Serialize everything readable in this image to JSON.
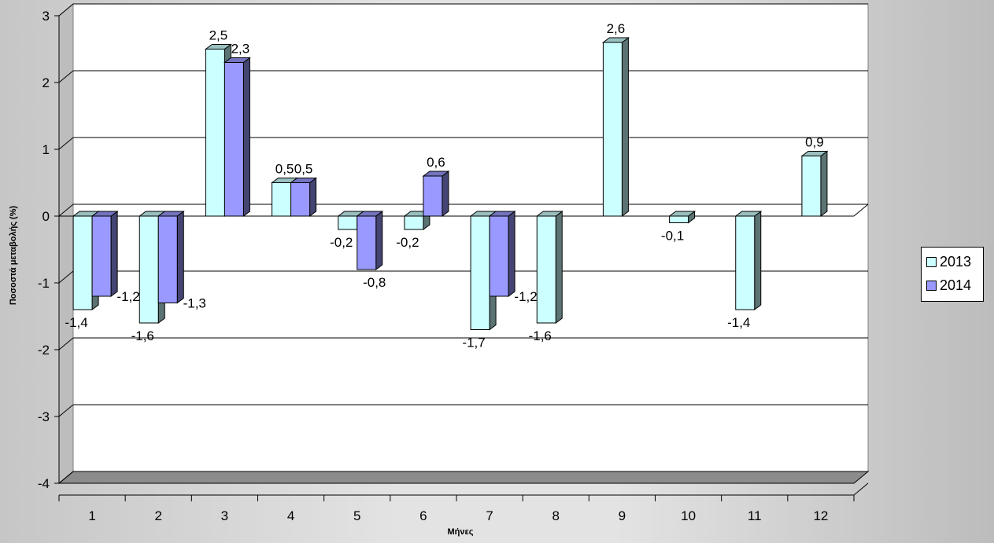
{
  "chart_data": {
    "type": "bar",
    "title": "",
    "xlabel": "Μήνες",
    "ylabel": "Ποσοστά μεταβολής (%)",
    "categories": [
      "1",
      "2",
      "3",
      "4",
      "5",
      "6",
      "7",
      "8",
      "9",
      "10",
      "11",
      "12"
    ],
    "series": [
      {
        "name": "2013",
        "color": "#ccffff",
        "values": [
          -1.4,
          -1.6,
          2.5,
          0.5,
          -0.2,
          -0.2,
          -1.7,
          -1.6,
          2.6,
          -0.1,
          -1.4,
          0.9
        ],
        "labels": [
          "-1,4",
          "-1,6",
          "2,5",
          "0,5",
          "-0,2",
          "-0,2",
          "-1,7",
          "-1,6",
          "2,6",
          "-0,1",
          "-1,4",
          "0,9"
        ]
      },
      {
        "name": "2014",
        "color": "#9999ff",
        "values": [
          -1.2,
          -1.3,
          2.3,
          0.5,
          -0.8,
          0.6,
          -1.2,
          null,
          null,
          null,
          null,
          null
        ],
        "labels": [
          "-1,2",
          "-1,3",
          "2,3",
          "0,5",
          "-0,8",
          "0,6",
          "-1,2",
          null,
          null,
          null,
          null,
          null
        ]
      }
    ],
    "ylim": [
      -4,
      3
    ],
    "yticks": [
      "3",
      "2",
      "1",
      "0",
      "-1",
      "-2",
      "-3",
      "-4"
    ],
    "grid": true,
    "legend": "right"
  }
}
